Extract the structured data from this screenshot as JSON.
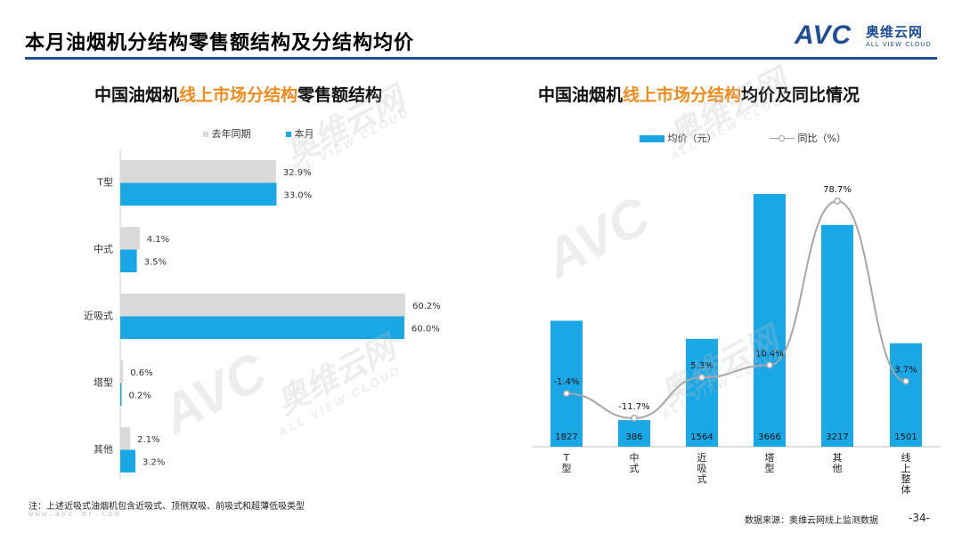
{
  "page": {
    "title": "本月油烟机分结构零售额结构及分结构均价",
    "note": "注：上述近吸式油烟机包含近吸式、顶侧双吸、前吸式和超薄低吸类型",
    "website": "www.avc-mr.com",
    "source": "数据来源：奥维云网线上监测数据",
    "page_number": "-34-"
  },
  "logo": {
    "mark": "AVC",
    "cn": "奥维云网",
    "en": "ALL VIEW CLOUD"
  },
  "watermark": {
    "mark": "AVC",
    "cn": "奥维云网",
    "en": "ALL VIEW CLOUD"
  },
  "colors": {
    "accent_blue": "#1aa7e6",
    "gray_bar": "#d9d9d9",
    "title_rule": "#1f4e96",
    "highlight": "#f08c1e",
    "line": "#a6a6a6"
  },
  "chart_data": [
    {
      "type": "bar",
      "orientation": "horizontal",
      "title_parts": [
        "中国油烟机",
        "线上市场分结构",
        "零售额结构"
      ],
      "categories": [
        "T型",
        "中式",
        "近吸式",
        "塔型",
        "其他"
      ],
      "series": [
        {
          "name": "去年同期",
          "values": [
            32.9,
            4.1,
            60.2,
            0.6,
            2.1
          ],
          "labels": [
            "32.9%",
            "4.1%",
            "60.2%",
            "0.6%",
            "2.1%"
          ],
          "color": "#d9d9d9"
        },
        {
          "name": "本月",
          "values": [
            33.0,
            3.5,
            60.0,
            0.2,
            3.2
          ],
          "labels": [
            "33.0%",
            "3.5%",
            "60.0%",
            "0.2%",
            "3.2%"
          ],
          "color": "#1aa7e6"
        }
      ],
      "unit": "%",
      "grid": false,
      "legend": "top"
    },
    {
      "type": "bar+line",
      "title_parts": [
        "中国油烟机",
        "线上市场分结构",
        "均价及同比情况"
      ],
      "categories": [
        "T型",
        "中式",
        "近吸式",
        "塔型",
        "其他",
        "线上整体"
      ],
      "bars": {
        "name": "均价（元）",
        "values": [
          1827,
          386,
          1564,
          3666,
          3217,
          1501
        ],
        "labels": [
          "1827",
          "386",
          "1564",
          "3666",
          "3217",
          "1501"
        ],
        "color": "#1aa7e6"
      },
      "line": {
        "name": "同比（%）",
        "values": [
          -1.4,
          -11.7,
          5.3,
          10.4,
          78.7,
          3.7
        ],
        "labels": [
          "-1.4%",
          "-11.7%",
          "5.3%",
          "10.4%",
          "78.7%",
          "3.7%"
        ],
        "color": "#a6a6a6"
      },
      "grid": false,
      "legend": "top"
    }
  ]
}
